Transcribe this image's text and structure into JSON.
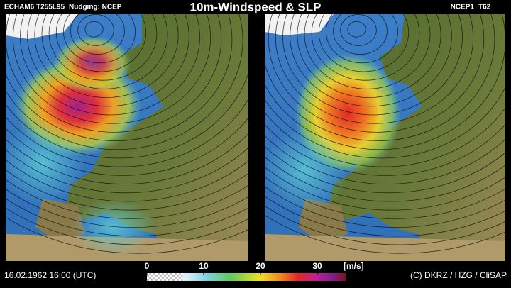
{
  "header": {
    "left_model": "ECHAM6 T255L95",
    "left_nudging": "Nudging: NCEP",
    "title": "10m-Windspeed & SLP",
    "right_model": "NCEP1",
    "right_resolution": "T62"
  },
  "footer": {
    "timestamp": "16.02.1962 16:00 (UTC)",
    "credit": "(C) DKRZ / HZG / CliSAP"
  },
  "colorbar": {
    "range": [
      0,
      35
    ],
    "ticks": [
      0,
      10,
      20,
      30
    ],
    "unit": "[m/s]"
  }
}
